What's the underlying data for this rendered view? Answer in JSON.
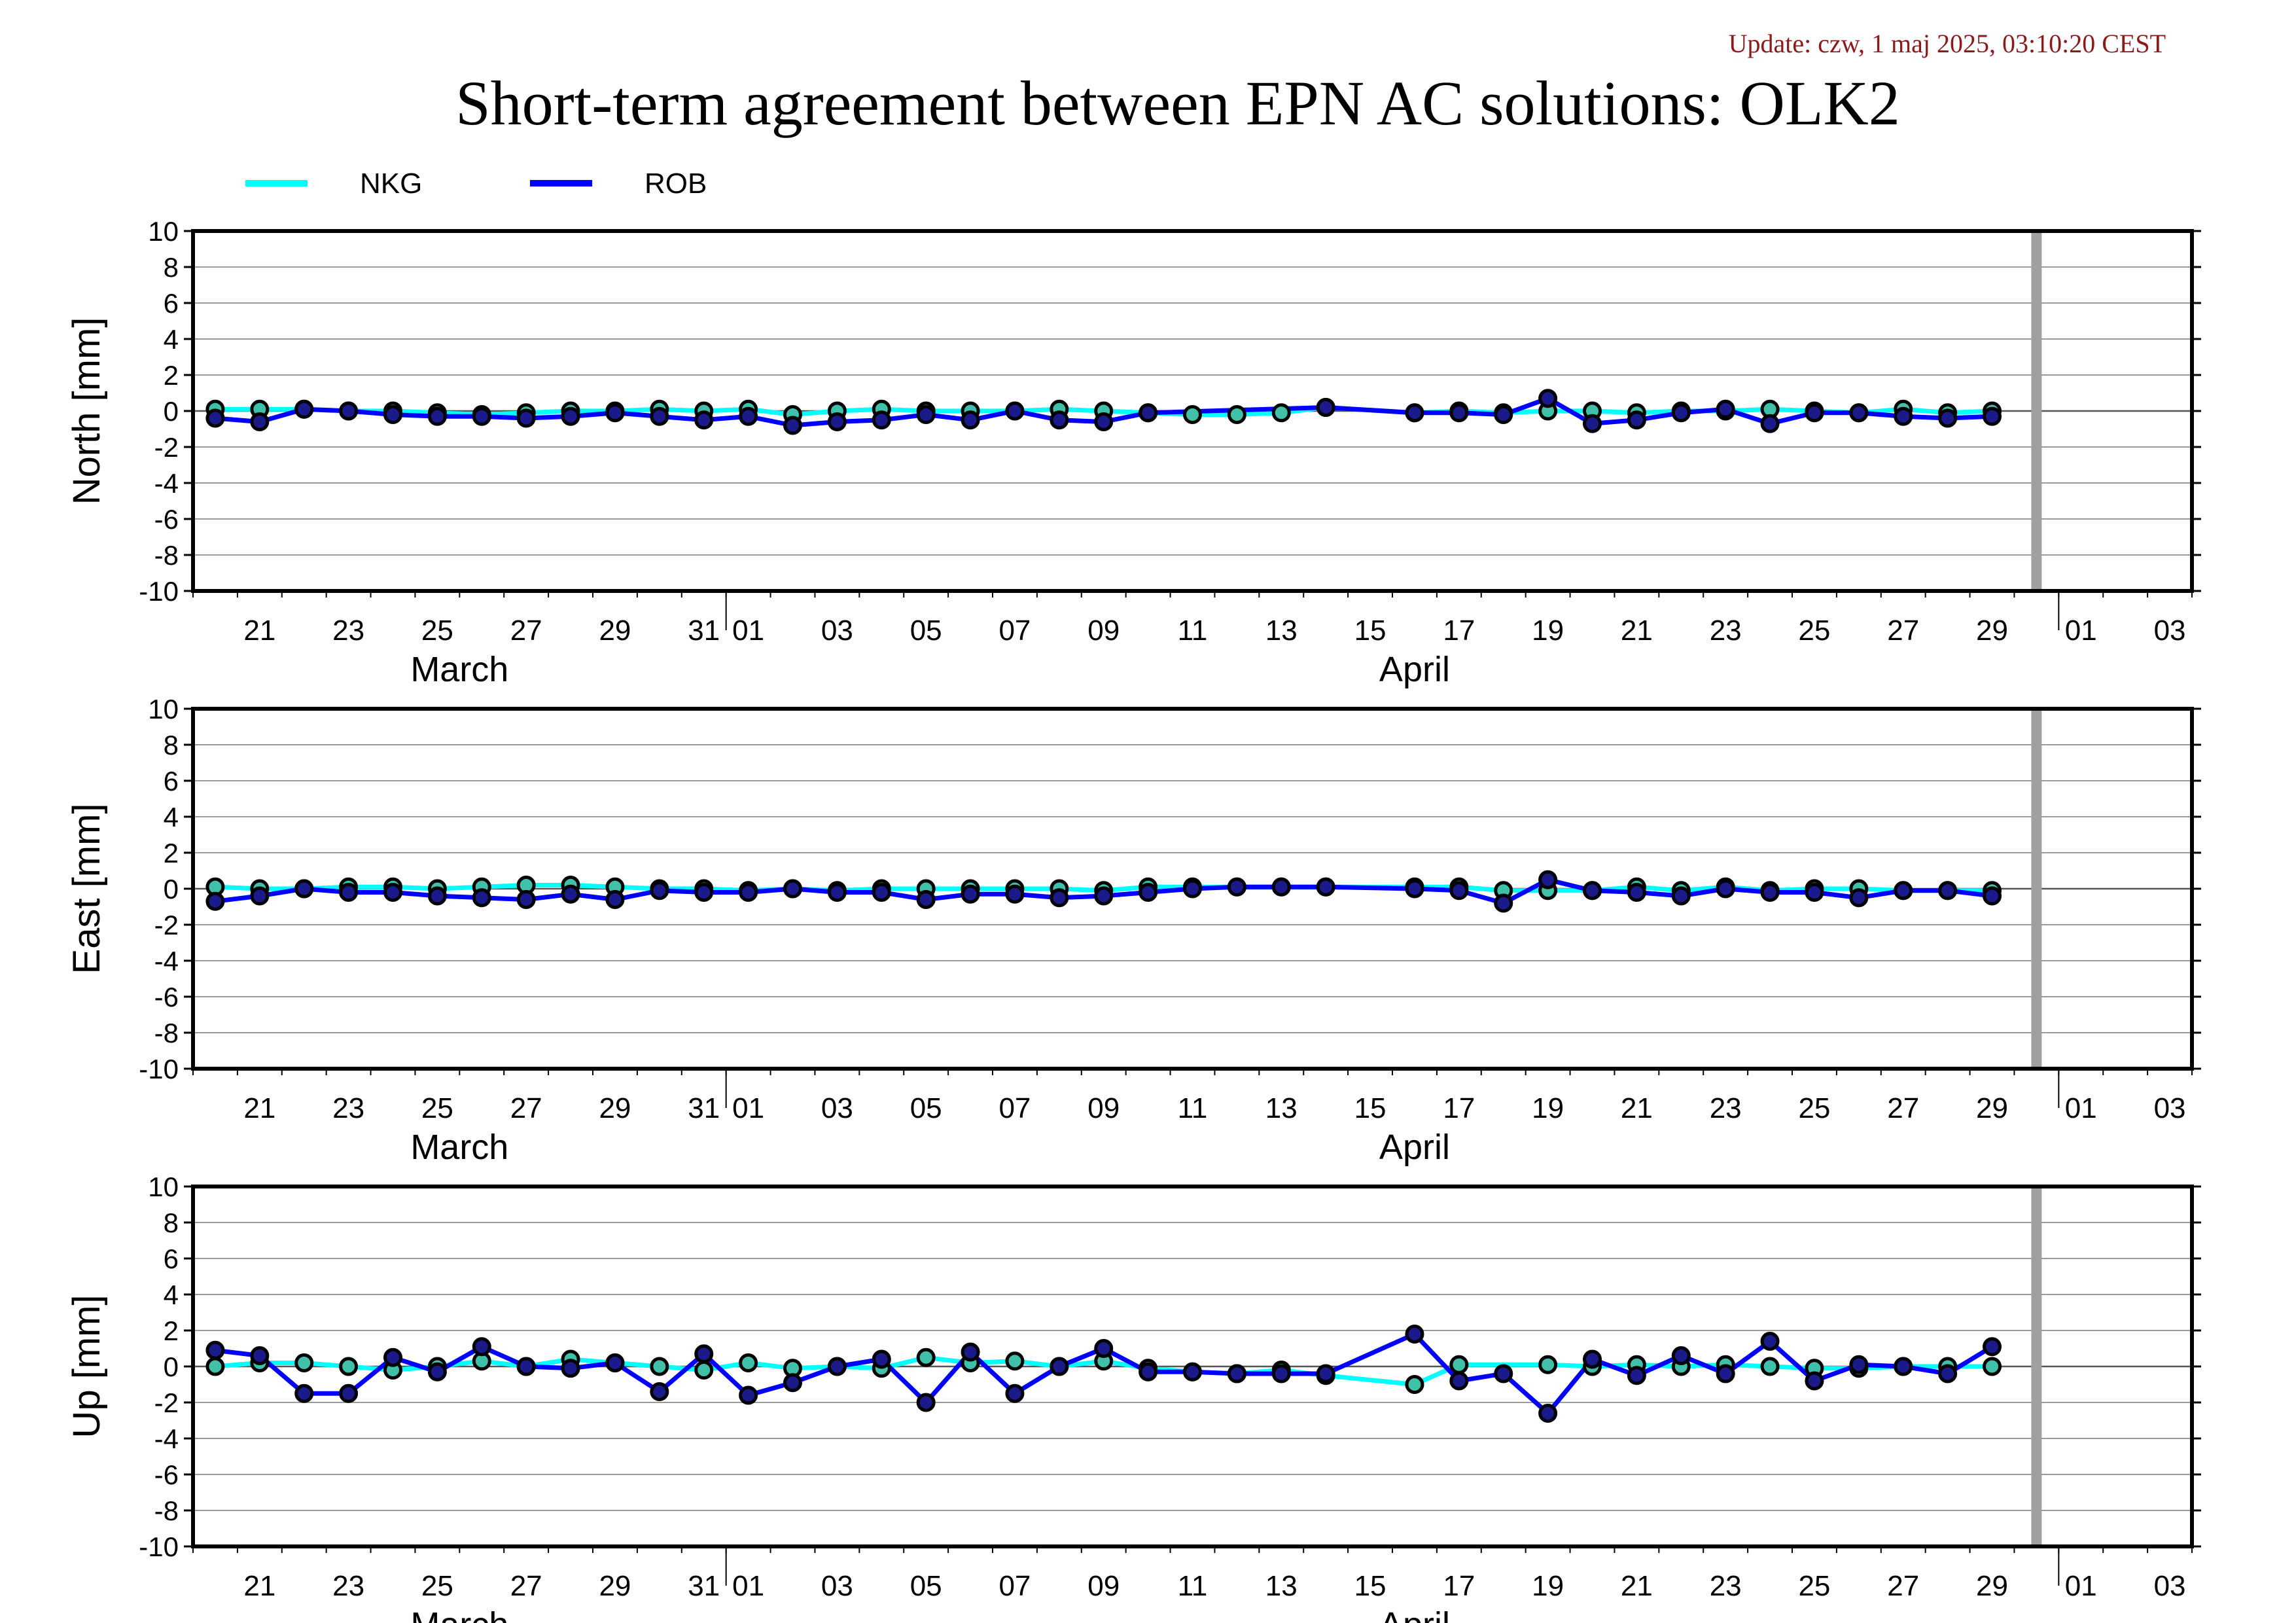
{
  "update_text": "Update: czw, 1 maj 2025, 03:10:20 CEST",
  "title": "Short-term agreement between EPN AC solutions: OLK2",
  "colors": {
    "NKG": "#00ffff",
    "ROB": "#0000ff",
    "update": "#8b1a1a",
    "marker_edge": "#000000",
    "NKG_marker_fill": "#40c0a8",
    "ROB_marker_fill": "#1a1a8a",
    "current_day_bar": "#a0a0a0"
  },
  "legend": [
    {
      "name": "NKG",
      "color": "#00ffff"
    },
    {
      "name": "ROB",
      "color": "#0000ff"
    }
  ],
  "x_axis": {
    "tick_labels": [
      "21",
      "23",
      "25",
      "27",
      "29",
      "31",
      "01",
      "03",
      "05",
      "07",
      "09",
      "11",
      "13",
      "15",
      "17",
      "19",
      "21",
      "23",
      "25",
      "27",
      "29",
      "01",
      "03"
    ],
    "month_labels": [
      "March",
      "April"
    ],
    "range_days": [
      0,
      45
    ],
    "tick_days": [
      1.5,
      3.5,
      5.5,
      7.5,
      9.5,
      11.5,
      12.5,
      14.5,
      16.5,
      18.5,
      20.5,
      22.5,
      24.5,
      26.5,
      28.5,
      30.5,
      32.5,
      34.5,
      36.5,
      38.5,
      40.5,
      42.5,
      44.5
    ],
    "month_label_days": [
      6.0,
      27.5
    ],
    "month_separator_days": [
      12.0,
      42.0
    ],
    "current_day_bar": 41.5
  },
  "chart_data": [
    {
      "type": "line",
      "ylabel": "North [mm]",
      "ylim": [
        -10,
        10
      ],
      "yticks": [
        "10",
        "8",
        "6",
        "4",
        "2",
        "0",
        "-2",
        "-4",
        "-6",
        "-8",
        "-10"
      ],
      "grid": true,
      "series": [
        {
          "name": "NKG",
          "x": [
            0.5,
            1.5,
            2.5,
            3.5,
            4.5,
            5.5,
            6.5,
            7.5,
            8.5,
            9.5,
            10.5,
            11.5,
            12.5,
            13.5,
            14.5,
            15.5,
            16.5,
            17.5,
            18.5,
            19.5,
            20.5,
            21.5,
            22.5,
            23.5,
            24.5,
            25.5,
            27.5,
            28.5,
            29.5,
            30.5,
            31.5,
            32.5,
            33.5,
            34.5,
            35.5,
            36.5,
            37.5,
            38.5,
            39.5,
            40.5
          ],
          "y": [
            0.1,
            0.1,
            0.1,
            0.0,
            0.0,
            -0.1,
            -0.2,
            -0.1,
            0.0,
            0.0,
            0.1,
            0.0,
            0.1,
            -0.2,
            0.0,
            0.1,
            0.0,
            0.0,
            0.0,
            0.1,
            0.0,
            -0.1,
            -0.2,
            -0.2,
            -0.1,
            0.2,
            -0.1,
            0.0,
            -0.1,
            0.0,
            0.0,
            -0.1,
            0.0,
            0.0,
            0.1,
            0.0,
            -0.1,
            0.1,
            -0.1,
            0.0
          ]
        },
        {
          "name": "ROB",
          "x": [
            0.5,
            1.5,
            2.5,
            3.5,
            4.5,
            5.5,
            6.5,
            7.5,
            8.5,
            9.5,
            10.5,
            11.5,
            12.5,
            13.5,
            14.5,
            15.5,
            16.5,
            17.5,
            18.5,
            19.5,
            20.5,
            21.5,
            25.5,
            27.5,
            28.5,
            29.5,
            30.5,
            31.5,
            32.5,
            33.5,
            34.5,
            35.5,
            36.5,
            37.5,
            38.5,
            39.5,
            40.5
          ],
          "y": [
            -0.4,
            -0.6,
            0.1,
            0.0,
            -0.2,
            -0.3,
            -0.3,
            -0.4,
            -0.3,
            -0.1,
            -0.3,
            -0.5,
            -0.3,
            -0.8,
            -0.6,
            -0.5,
            -0.2,
            -0.5,
            0.0,
            -0.5,
            -0.6,
            -0.1,
            0.2,
            -0.1,
            -0.1,
            -0.2,
            0.7,
            -0.7,
            -0.5,
            -0.1,
            0.1,
            -0.7,
            -0.1,
            -0.1,
            -0.3,
            -0.4,
            -0.3
          ]
        }
      ]
    },
    {
      "type": "line",
      "ylabel": "East [mm]",
      "ylim": [
        -10,
        10
      ],
      "yticks": [
        "10",
        "8",
        "6",
        "4",
        "2",
        "0",
        "-2",
        "-4",
        "-6",
        "-8",
        "-10"
      ],
      "grid": true,
      "series": [
        {
          "name": "NKG",
          "x": [
            0.5,
            1.5,
            2.5,
            3.5,
            4.5,
            5.5,
            6.5,
            7.5,
            8.5,
            9.5,
            10.5,
            11.5,
            12.5,
            13.5,
            14.5,
            15.5,
            16.5,
            17.5,
            18.5,
            19.5,
            20.5,
            21.5,
            22.5,
            23.5,
            24.5,
            25.5,
            27.5,
            28.5,
            29.5,
            30.5,
            31.5,
            32.5,
            33.5,
            34.5,
            35.5,
            36.5,
            37.5,
            38.5,
            39.5,
            40.5
          ],
          "y": [
            0.1,
            0.0,
            0.0,
            0.1,
            0.1,
            0.0,
            0.1,
            0.2,
            0.2,
            0.1,
            0.0,
            0.0,
            -0.1,
            0.0,
            -0.1,
            0.0,
            0.0,
            0.0,
            0.0,
            0.0,
            -0.1,
            0.1,
            0.1,
            0.1,
            0.1,
            0.1,
            0.1,
            0.1,
            -0.1,
            -0.1,
            -0.1,
            0.1,
            -0.1,
            0.1,
            -0.1,
            0.0,
            0.0,
            -0.1,
            -0.1,
            -0.1
          ]
        },
        {
          "name": "ROB",
          "x": [
            0.5,
            1.5,
            2.5,
            3.5,
            4.5,
            5.5,
            6.5,
            7.5,
            8.5,
            9.5,
            10.5,
            11.5,
            12.5,
            13.5,
            14.5,
            15.5,
            16.5,
            17.5,
            18.5,
            19.5,
            20.5,
            21.5,
            22.5,
            23.5,
            24.5,
            25.5,
            27.5,
            28.5,
            29.5,
            30.5,
            31.5,
            32.5,
            33.5,
            34.5,
            35.5,
            36.5,
            37.5,
            38.5,
            39.5,
            40.5
          ],
          "y": [
            -0.7,
            -0.4,
            0.0,
            -0.2,
            -0.2,
            -0.4,
            -0.5,
            -0.6,
            -0.3,
            -0.6,
            -0.1,
            -0.2,
            -0.2,
            0.0,
            -0.2,
            -0.2,
            -0.6,
            -0.3,
            -0.3,
            -0.5,
            -0.4,
            -0.2,
            0.0,
            0.1,
            0.1,
            0.1,
            0.0,
            -0.1,
            -0.8,
            0.5,
            -0.1,
            -0.2,
            -0.4,
            0.0,
            -0.2,
            -0.2,
            -0.5,
            -0.1,
            -0.1,
            -0.4
          ]
        }
      ]
    },
    {
      "type": "line",
      "ylabel": "Up [mm]",
      "ylim": [
        -10,
        10
      ],
      "yticks": [
        "10",
        "8",
        "6",
        "4",
        "2",
        "0",
        "-2",
        "-4",
        "-6",
        "-8",
        "-10"
      ],
      "grid": true,
      "series": [
        {
          "name": "NKG",
          "x": [
            0.5,
            1.5,
            2.5,
            3.5,
            4.5,
            5.5,
            6.5,
            7.5,
            8.5,
            9.5,
            10.5,
            11.5,
            12.5,
            13.5,
            14.5,
            15.5,
            16.5,
            17.5,
            18.5,
            19.5,
            20.5,
            21.5,
            22.5,
            23.5,
            24.5,
            25.5,
            27.5,
            28.5,
            30.5,
            31.5,
            32.5,
            33.5,
            34.5,
            35.5,
            36.5,
            37.5,
            38.5,
            39.5,
            40.5
          ],
          "y": [
            0.0,
            0.2,
            0.2,
            0.0,
            -0.2,
            0.0,
            0.3,
            0.0,
            0.4,
            0.2,
            0.0,
            -0.2,
            0.2,
            -0.1,
            0.0,
            -0.1,
            0.5,
            0.2,
            0.3,
            0.0,
            0.3,
            -0.1,
            -0.3,
            -0.4,
            -0.2,
            -0.5,
            -1.0,
            0.1,
            0.1,
            0.0,
            0.1,
            0.0,
            0.1,
            0.0,
            -0.1,
            -0.1,
            0.0,
            0.0,
            0.0
          ]
        },
        {
          "name": "ROB",
          "x": [
            0.5,
            1.5,
            2.5,
            3.5,
            4.5,
            5.5,
            6.5,
            7.5,
            8.5,
            9.5,
            10.5,
            11.5,
            12.5,
            13.5,
            14.5,
            15.5,
            16.5,
            17.5,
            18.5,
            19.5,
            20.5,
            21.5,
            22.5,
            23.5,
            24.5,
            25.5,
            27.5,
            28.5,
            29.5,
            30.5,
            31.5,
            32.5,
            33.5,
            34.5,
            35.5,
            36.5,
            37.5,
            38.5,
            39.5,
            40.5
          ],
          "y": [
            0.9,
            0.6,
            -1.5,
            -1.5,
            0.5,
            -0.3,
            1.1,
            0.0,
            -0.1,
            0.2,
            -1.4,
            0.7,
            -1.6,
            -0.9,
            0.0,
            0.4,
            -2.0,
            0.8,
            -1.5,
            0.0,
            1.0,
            -0.3,
            -0.3,
            -0.4,
            -0.4,
            -0.4,
            1.8,
            -0.8,
            -0.4,
            -2.6,
            0.4,
            -0.5,
            0.6,
            -0.4,
            1.4,
            -0.8,
            0.1,
            0.0,
            -0.4,
            1.1
          ]
        }
      ]
    }
  ]
}
